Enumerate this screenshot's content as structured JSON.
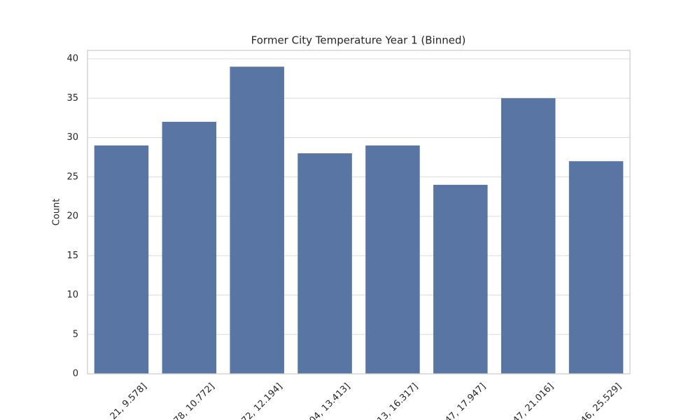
{
  "chart_data": {
    "type": "bar",
    "title": "Former City Temperature Year 1 (Binned)",
    "y_label": "Count",
    "categories": [
      "21, 9.578]",
      "78, 10.772]",
      "72, 12.194]",
      "04, 13.413]",
      "13, 16.317]",
      "47, 17.947]",
      "47, 21.016]",
      "46, 25.529]"
    ],
    "values": [
      29,
      32,
      39,
      28,
      29,
      24,
      35,
      27
    ],
    "color": "#5875a4",
    "ylim": [
      0,
      41.07
    ],
    "yticks": [
      0,
      5,
      10,
      15,
      20,
      25,
      30,
      35,
      40
    ],
    "grid": true
  }
}
